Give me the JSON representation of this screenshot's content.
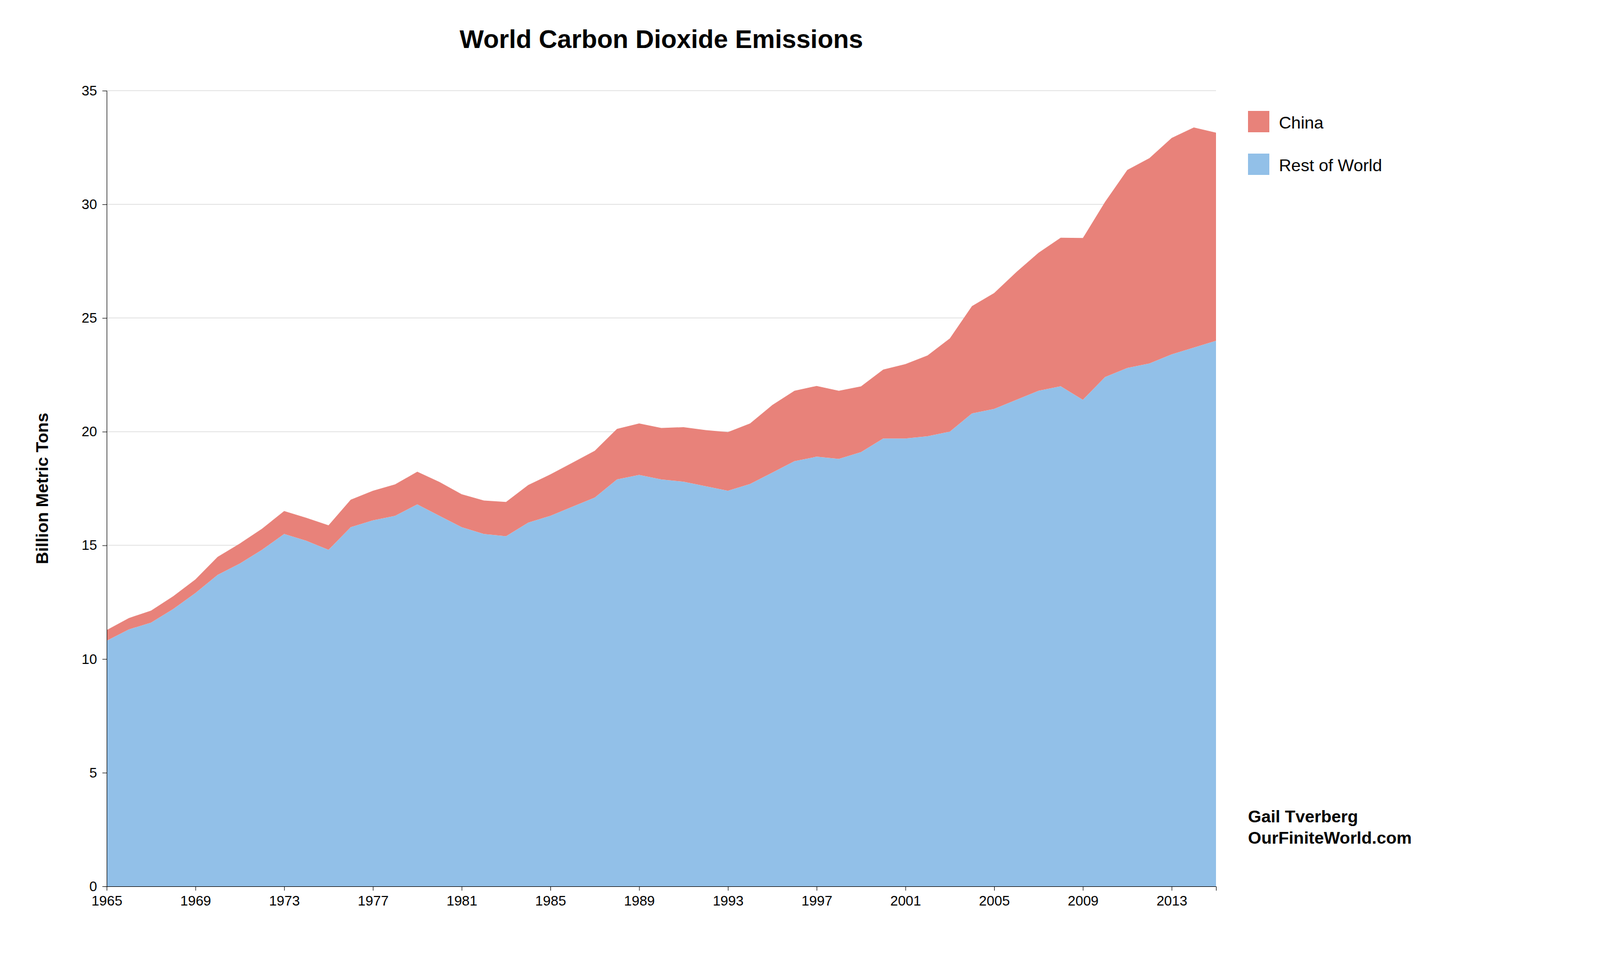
{
  "chart_data": {
    "type": "area",
    "stacked": true,
    "title": "World Carbon Dioxide Emissions",
    "y_label": "Billion Metric Tons",
    "x": [
      1965,
      1966,
      1967,
      1968,
      1969,
      1970,
      1971,
      1972,
      1973,
      1974,
      1975,
      1976,
      1977,
      1978,
      1979,
      1980,
      1981,
      1982,
      1983,
      1984,
      1985,
      1986,
      1987,
      1988,
      1989,
      1990,
      1991,
      1992,
      1993,
      1994,
      1995,
      1996,
      1997,
      1998,
      1999,
      2000,
      2001,
      2002,
      2003,
      2004,
      2005,
      2006,
      2007,
      2008,
      2009,
      2010,
      2011,
      2012,
      2013,
      2014,
      2015
    ],
    "series": [
      {
        "name": "Rest of World",
        "color": "#92C0E8",
        "values": [
          10.8,
          11.3,
          11.6,
          12.2,
          12.9,
          13.7,
          14.2,
          14.8,
          15.5,
          15.2,
          14.8,
          15.8,
          16.1,
          16.3,
          16.8,
          16.3,
          15.8,
          15.5,
          15.4,
          16.0,
          16.3,
          16.7,
          17.1,
          17.9,
          18.1,
          17.9,
          17.8,
          17.6,
          17.4,
          17.7,
          18.2,
          18.7,
          18.9,
          18.8,
          19.1,
          19.7,
          19.7,
          19.8,
          20.0,
          20.8,
          21.0,
          21.4,
          21.8,
          22.0,
          21.4,
          22.4,
          22.8,
          23.0,
          23.4,
          23.7,
          24.0
        ]
      },
      {
        "name": "China",
        "color": "#E8827A",
        "values": [
          0.47,
          0.5,
          0.53,
          0.56,
          0.6,
          0.79,
          0.88,
          0.93,
          1.01,
          1.01,
          1.08,
          1.21,
          1.3,
          1.38,
          1.44,
          1.49,
          1.45,
          1.47,
          1.51,
          1.65,
          1.82,
          1.94,
          2.06,
          2.22,
          2.26,
          2.26,
          2.4,
          2.47,
          2.58,
          2.66,
          2.97,
          3.1,
          3.11,
          3.0,
          2.89,
          3.03,
          3.27,
          3.55,
          4.1,
          4.72,
          5.1,
          5.62,
          6.07,
          6.53,
          7.12,
          7.71,
          8.71,
          9.03,
          9.52,
          9.68,
          9.15
        ]
      }
    ],
    "xlim": [
      1965,
      2015
    ],
    "xticks": [
      1965,
      1969,
      1973,
      1977,
      1981,
      1985,
      1989,
      1993,
      1997,
      2001,
      2005,
      2009,
      2013
    ],
    "ylim": [
      0,
      35
    ],
    "yticks": [
      0,
      5,
      10,
      15,
      20,
      25,
      30,
      35
    ],
    "grid": true,
    "legend": "right",
    "annotations": [
      "Gail Tverberg\nOurFiniteWorld.com"
    ]
  }
}
